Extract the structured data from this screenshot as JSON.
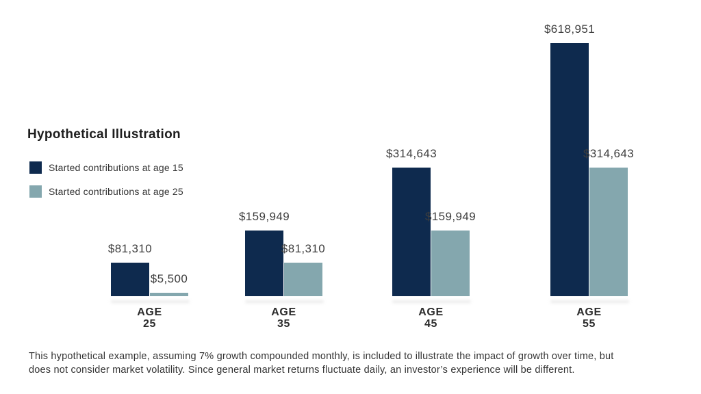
{
  "title": "Hypothetical Illustration",
  "legend": [
    {
      "label": "Started contributions at age 15",
      "color": "#0e2a4e"
    },
    {
      "label": "Started contributions at age 25",
      "color": "#84a7ae"
    }
  ],
  "chart_data": {
    "type": "bar",
    "title": "Hypothetical Illustration",
    "categories": [
      "AGE 25",
      "AGE 35",
      "AGE 45",
      "AGE 55"
    ],
    "series": [
      {
        "name": "Started contributions at age 15",
        "color": "#0e2a4e",
        "values": [
          81310,
          159949,
          314643,
          618951
        ],
        "labels": [
          "$81,310",
          "$159,949",
          "$314,643",
          "$618,951"
        ]
      },
      {
        "name": "Started contributions at age 25",
        "color": "#84a7ae",
        "values": [
          5500,
          81310,
          159949,
          314643
        ],
        "labels": [
          "$5,500",
          "$81,310",
          "$159,949",
          "$314,643"
        ]
      }
    ],
    "xlabel": "",
    "ylabel": "",
    "ylim": [
      0,
      650000
    ],
    "grid": false,
    "axes_visible": false,
    "legend_position": "upper-left",
    "value_labels": "above-each-bar"
  },
  "footnote": [
    "This hypothetical example, assuming 7% growth compounded monthly, is included to illustrate the impact of growth over time, but",
    "does not consider market volatility. Since general market returns fluctuate daily, an investor’s experience will be different."
  ]
}
